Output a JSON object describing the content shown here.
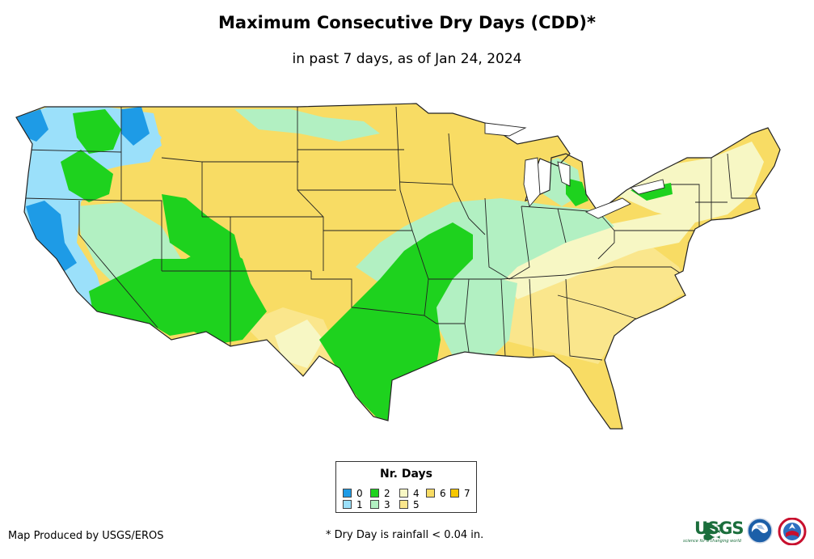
{
  "title": "Maximum Consecutive Dry Days (CDD)*",
  "subtitle": "in past 7 days, as of Jan 24, 2024",
  "legend": {
    "title": "Nr. Days",
    "items": [
      {
        "label": "0",
        "color": "#1e9be6"
      },
      {
        "label": "1",
        "color": "#9be0fa"
      },
      {
        "label": "2",
        "color": "#1ed21e"
      },
      {
        "label": "3",
        "color": "#b2f0c2"
      },
      {
        "label": "4",
        "color": "#f7f7c4"
      },
      {
        "label": "5",
        "color": "#fae68c"
      },
      {
        "label": "6",
        "color": "#f8dc64"
      },
      {
        "label": "7",
        "color": "#f6c700"
      }
    ]
  },
  "credit": "Map Produced by USGS/EROS",
  "footnote": "* Dry Day is rainfall < 0.04 in.",
  "logos": {
    "usgs_text": "USGS",
    "usgs_tagline": "science for a changing world",
    "usgs_color": "#1b6e3c"
  }
}
